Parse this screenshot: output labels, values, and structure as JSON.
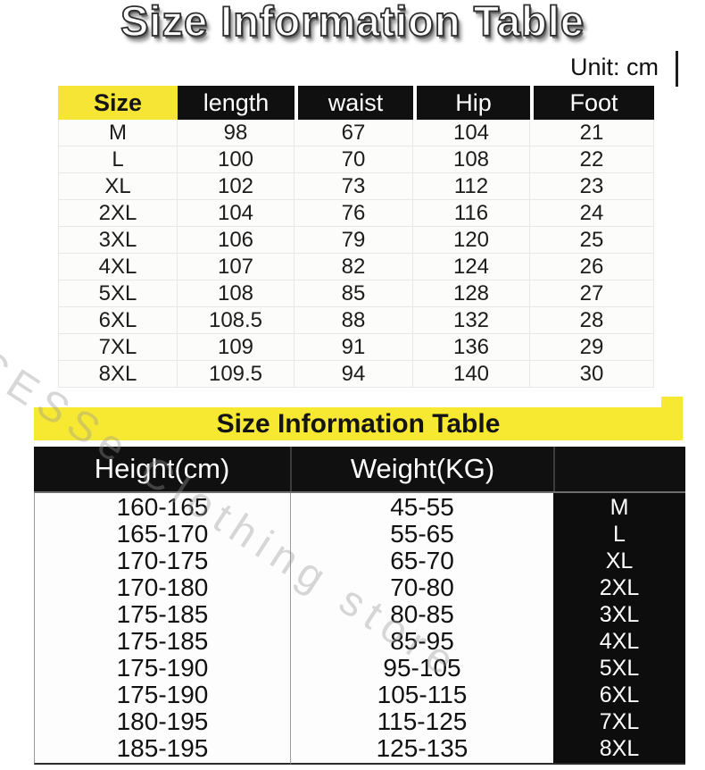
{
  "header": {
    "title": "Size Information Table",
    "unit_label": "Unit: cm"
  },
  "table1": {
    "columns": [
      "Size",
      "length",
      "waist",
      "Hip",
      "Foot"
    ],
    "rows": [
      [
        "M",
        "98",
        "67",
        "104",
        "21"
      ],
      [
        "L",
        "100",
        "70",
        "108",
        "22"
      ],
      [
        "XL",
        "102",
        "73",
        "112",
        "23"
      ],
      [
        "2XL",
        "104",
        "76",
        "116",
        "24"
      ],
      [
        "3XL",
        "106",
        "79",
        "120",
        "25"
      ],
      [
        "4XL",
        "107",
        "82",
        "124",
        "26"
      ],
      [
        "5XL",
        "108",
        "85",
        "128",
        "27"
      ],
      [
        "6XL",
        "108.5",
        "88",
        "132",
        "28"
      ],
      [
        "7XL",
        "109",
        "91",
        "136",
        "29"
      ],
      [
        "8XL",
        "109.5",
        "94",
        "140",
        "30"
      ]
    ]
  },
  "table2": {
    "title": "Size Information Table",
    "columns": [
      "Height(cm)",
      "Weight(KG)",
      ""
    ],
    "rows": [
      [
        "160-165",
        "45-55",
        "M"
      ],
      [
        "165-170",
        "55-65",
        "L"
      ],
      [
        "170-175",
        "65-70",
        "XL"
      ],
      [
        "170-180",
        "70-80",
        "2XL"
      ],
      [
        "175-185",
        "80-85",
        "3XL"
      ],
      [
        "175-185",
        "85-95",
        "4XL"
      ],
      [
        "175-190",
        "95-105",
        "5XL"
      ],
      [
        "175-190",
        "105-115",
        "6XL"
      ],
      [
        "180-195",
        "115-125",
        "7XL"
      ],
      [
        "185-195",
        "125-135",
        "8XL"
      ]
    ]
  },
  "watermark": {
    "text": "CESSe Clothing store"
  },
  "colors": {
    "accent_yellow": "#f7e832",
    "header_black": "#101010",
    "page_background": "#ffffff"
  }
}
